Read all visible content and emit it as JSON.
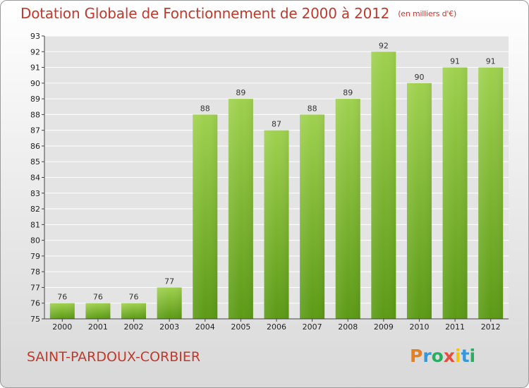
{
  "title": "Dotation Globale de Fonctionnement de 2000 à 2012",
  "unit": "(en milliers d'€)",
  "commune": "SAINT-PARDOUX-CORBIER",
  "logo": {
    "letters": [
      "P",
      "r",
      "o",
      "x",
      "i",
      "t",
      "i"
    ],
    "colors": [
      "#e67e22",
      "#3498db",
      "#27ae60",
      "#e74c3c",
      "#f1c40f",
      "#3498db",
      "#27ae60"
    ]
  },
  "colors": {
    "bar_top": "#9fd14f",
    "bar_bottom": "#5c9a16",
    "grid": "#ffffff",
    "title": "#c0392b"
  },
  "chart_data": {
    "type": "bar",
    "title": "Dotation Globale de Fonctionnement de 2000 à 2012",
    "xlabel": "",
    "ylabel": "",
    "categories": [
      "2000",
      "2001",
      "2002",
      "2003",
      "2004",
      "2005",
      "2006",
      "2007",
      "2008",
      "2009",
      "2010",
      "2011",
      "2012"
    ],
    "values": [
      76,
      76,
      76,
      77,
      88,
      89,
      87,
      88,
      89,
      92,
      90,
      91,
      91
    ],
    "ylim": [
      75,
      93
    ],
    "yticks": [
      75,
      76,
      77,
      78,
      79,
      80,
      81,
      82,
      83,
      84,
      85,
      86,
      87,
      88,
      89,
      90,
      91,
      92,
      93
    ],
    "grid": true
  }
}
